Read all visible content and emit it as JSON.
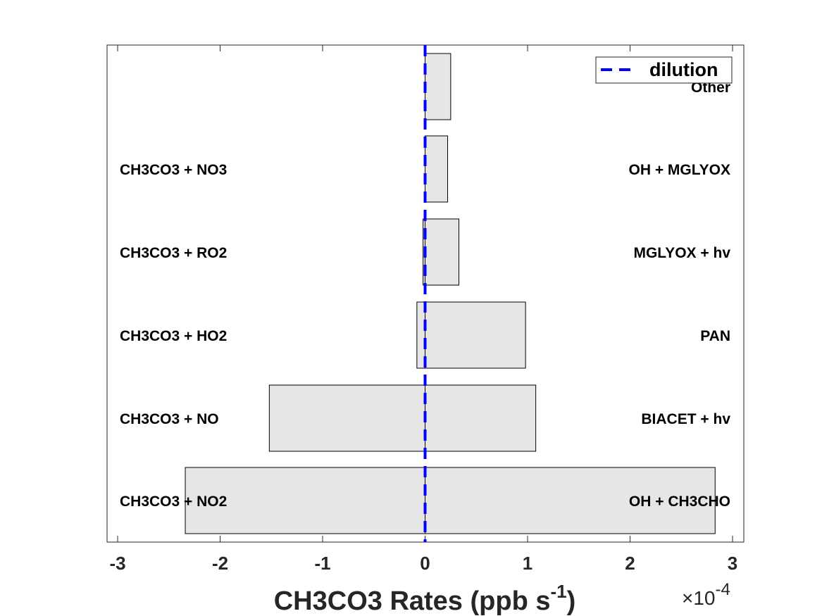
{
  "chart_data": {
    "type": "bar",
    "orientation": "horizontal",
    "xlabel_main": "CH3CO3 Rates (ppb s",
    "xlabel_sup": "-1",
    "xlabel_close": ")",
    "x_multiplier_base": "×10",
    "x_multiplier_exp": "-4",
    "xlim": [
      -3.1,
      3.1
    ],
    "xticks": [
      -3,
      -2,
      -1,
      0,
      1,
      2,
      3
    ],
    "xtick_labels": [
      "-3",
      "-2",
      "-1",
      "0",
      "1",
      "2",
      "3"
    ],
    "grid": false,
    "legend": {
      "placement": "top-right",
      "entries": [
        {
          "name": "dilution",
          "color": "#0000ff",
          "style": "dashed"
        }
      ]
    },
    "dilution_value": 0,
    "bar_color": "#e6e6e6",
    "rows": [
      {
        "loss_label": "CH3CO3 + NO2",
        "loss": -2.34,
        "prod_label": "OH + CH3CHO",
        "prod": 2.83
      },
      {
        "loss_label": "CH3CO3 + NO",
        "loss": -1.52,
        "prod_label": "BIACET + hv",
        "prod": 1.08
      },
      {
        "loss_label": "CH3CO3 + HO2",
        "loss": -0.08,
        "prod_label": "PAN",
        "prod": 0.98
      },
      {
        "loss_label": "CH3CO3 + RO2",
        "loss": -0.02,
        "prod_label": "MGLYOX + hv",
        "prod": 0.33
      },
      {
        "loss_label": "CH3CO3 + NO3",
        "loss": 0.0,
        "prod_label": "OH + MGLYOX",
        "prod": 0.22
      },
      {
        "loss_label": "",
        "loss": 0.0,
        "prod_label": "Other",
        "prod": 0.25
      }
    ]
  }
}
